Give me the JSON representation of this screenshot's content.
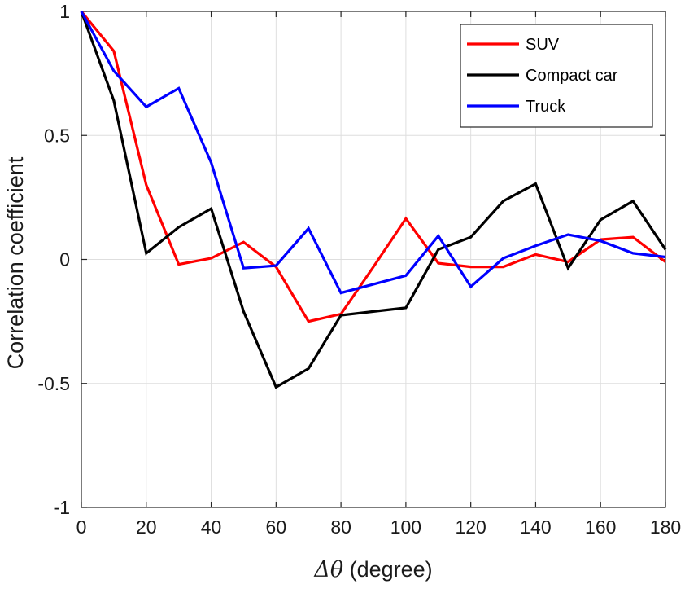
{
  "chart_data": {
    "type": "line",
    "title": "",
    "xlabel_symbol": "Δθ",
    "xlabel_unit": " (degree)",
    "ylabel": "Correlation coefficient",
    "xlim": [
      0,
      180
    ],
    "ylim": [
      -1,
      1
    ],
    "x_ticks": [
      0,
      20,
      40,
      60,
      80,
      100,
      120,
      140,
      160,
      180
    ],
    "y_ticks": [
      -1,
      -0.5,
      0,
      0.5,
      1
    ],
    "grid": true,
    "legend_position": "top-right",
    "x": [
      0,
      10,
      20,
      30,
      40,
      50,
      60,
      70,
      80,
      90,
      100,
      110,
      120,
      130,
      140,
      150,
      160,
      170,
      180
    ],
    "series": [
      {
        "name": "SUV",
        "color": "#ff0000",
        "values": [
          1.0,
          0.84,
          0.3,
          -0.02,
          0.005,
          0.07,
          -0.03,
          -0.25,
          -0.22,
          -0.03,
          0.165,
          -0.015,
          -0.03,
          -0.03,
          0.02,
          -0.01,
          0.08,
          0.09,
          -0.01
        ]
      },
      {
        "name": "Compact car",
        "color": "#000000",
        "values": [
          1.0,
          0.64,
          0.025,
          0.13,
          0.205,
          -0.21,
          -0.515,
          -0.44,
          -0.225,
          -0.21,
          -0.195,
          0.04,
          0.09,
          0.235,
          0.305,
          -0.035,
          0.16,
          0.235,
          0.04
        ]
      },
      {
        "name": "Truck",
        "color": "#0000ff",
        "values": [
          1.0,
          0.76,
          0.615,
          0.69,
          0.39,
          -0.035,
          -0.025,
          0.125,
          -0.135,
          -0.1,
          -0.065,
          0.095,
          -0.11,
          0.005,
          0.055,
          0.1,
          0.075,
          0.025,
          0.01
        ]
      }
    ]
  }
}
